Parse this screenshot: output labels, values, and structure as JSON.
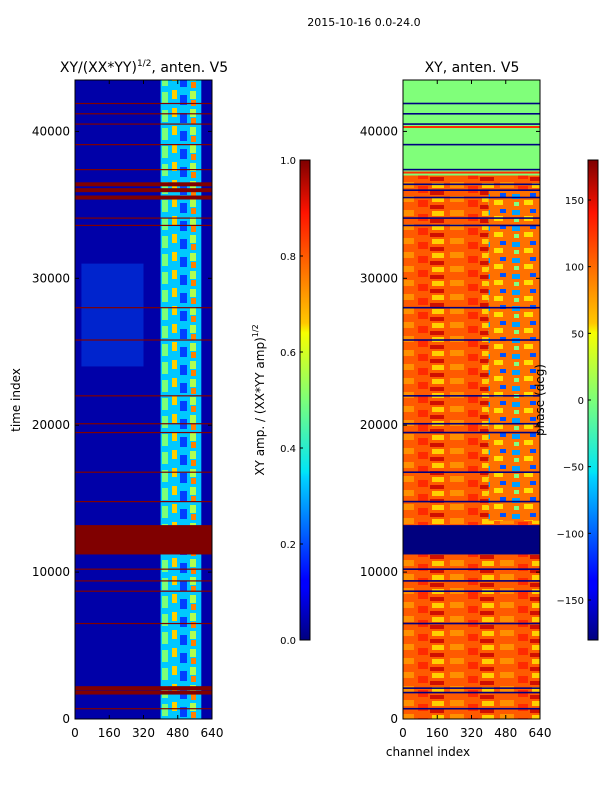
{
  "suptitle": "2015-10-16 0.0-24.0",
  "chart_data": [
    {
      "type": "heatmap",
      "title_main": "XY/(XX*YY)",
      "title_sup": "1/2",
      "title_tail": ", anten. V5",
      "ylabel": "time index",
      "xlabel": "",
      "xlim": [
        0,
        640
      ],
      "ylim": [
        0,
        43500
      ],
      "xticks": [
        0,
        160,
        320,
        480,
        640
      ],
      "yticks": [
        0,
        10000,
        20000,
        30000,
        40000
      ],
      "colorbar": {
        "label_main": "XY amp. / (XX*YY amp)",
        "label_sup": "1/2",
        "range": [
          0.0,
          1.0
        ],
        "ticks": [
          "0.0",
          "0.2",
          "0.4",
          "0.6",
          "0.8",
          "1.0"
        ]
      },
      "flagged_block": [
        11200,
        13200
      ],
      "flagged_lines": [
        700,
        1800,
        2100,
        6500,
        8700,
        9400,
        10200,
        14800,
        16800,
        19500,
        20100,
        22000,
        25800,
        28000,
        33600,
        34100,
        35500,
        36000,
        36400,
        37400,
        39100,
        40500,
        41200,
        41900
      ],
      "active_channels": [
        400,
        590
      ]
    },
    {
      "type": "heatmap",
      "title": "XY, anten. V5",
      "ylabel": "",
      "xlabel": "channel index",
      "xlim": [
        0,
        640
      ],
      "ylim": [
        0,
        43500
      ],
      "xticks": [
        0,
        160,
        320,
        480,
        640
      ],
      "yticks": [
        0,
        10000,
        20000,
        30000,
        40000
      ],
      "colorbar": {
        "label": "phase (deg)",
        "range": [
          -180,
          180
        ],
        "ticks": [
          "150",
          "100",
          "50",
          "0",
          "−50",
          "−100",
          "−150"
        ]
      },
      "flagged_block": [
        11200,
        13200
      ]
    }
  ]
}
